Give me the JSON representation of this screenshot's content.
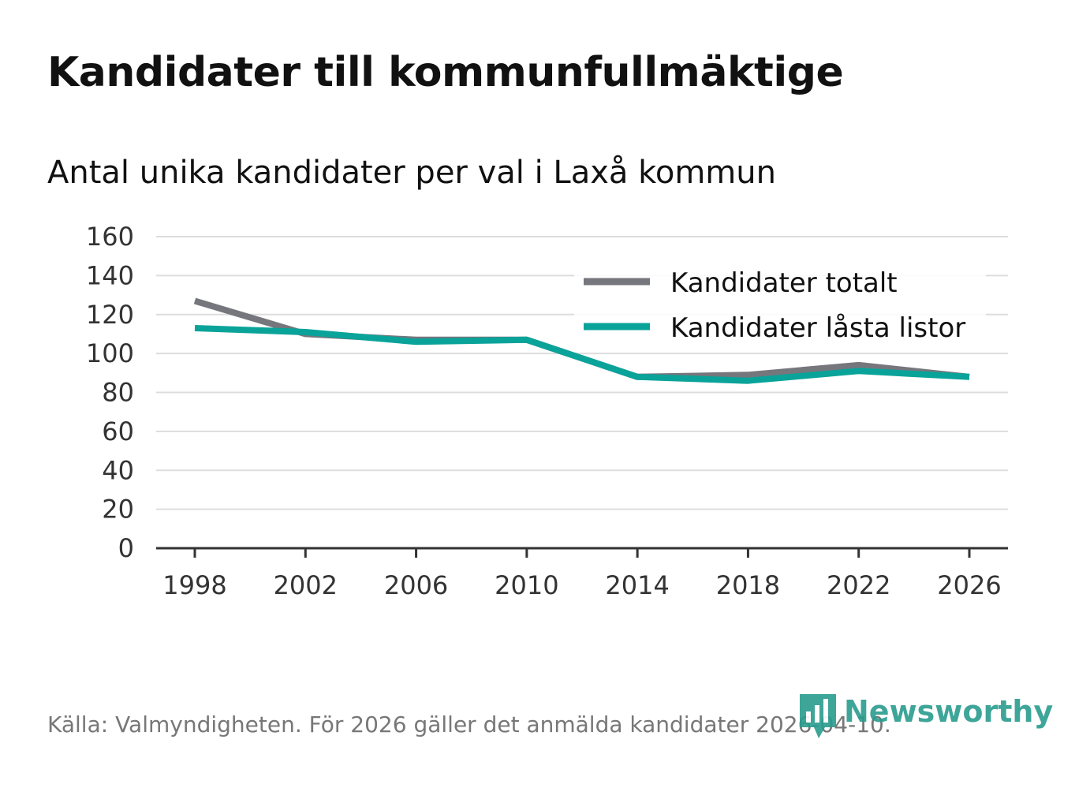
{
  "title": "Kandidater till kommunfullmäktige",
  "subtitle": "Antal unika kandidater per val i Laxå kommun",
  "source": "Källa: Valmyndigheten. För 2026 gäller det anmälda kandidater 2026-04-10.",
  "brand": {
    "name": "Newsworthy",
    "color": "#2a9c8f",
    "icon": "newsworthy-logo-icon"
  },
  "colors": {
    "series_total": "#76767d",
    "series_locked": "#0aa39a",
    "grid": "#dddddd",
    "axis": "#333333"
  },
  "chart_data": {
    "type": "line",
    "title": "Kandidater till kommunfullmäktige",
    "subtitle": "Antal unika kandidater per val i Laxå kommun",
    "xlabel": "",
    "ylabel": "",
    "x": [
      1998,
      2002,
      2006,
      2010,
      2014,
      2018,
      2022,
      2026
    ],
    "x_ticks": [
      "1998",
      "2002",
      "2006",
      "2010",
      "2014",
      "2018",
      "2022",
      "2026"
    ],
    "y_ticks": [
      "0",
      "20",
      "40",
      "60",
      "80",
      "100",
      "120",
      "140",
      "160"
    ],
    "ylim": [
      0,
      160
    ],
    "xlim": [
      1998,
      2026
    ],
    "grid": true,
    "legend_position": "top-right",
    "series": [
      {
        "name": "Kandidater totalt",
        "color": "#76767d",
        "values": [
          127,
          110,
          107,
          107,
          88,
          89,
          94,
          88
        ]
      },
      {
        "name": "Kandidater låsta listor",
        "color": "#0aa39a",
        "values": [
          113,
          111,
          106,
          107,
          88,
          86,
          91,
          88
        ]
      }
    ]
  }
}
